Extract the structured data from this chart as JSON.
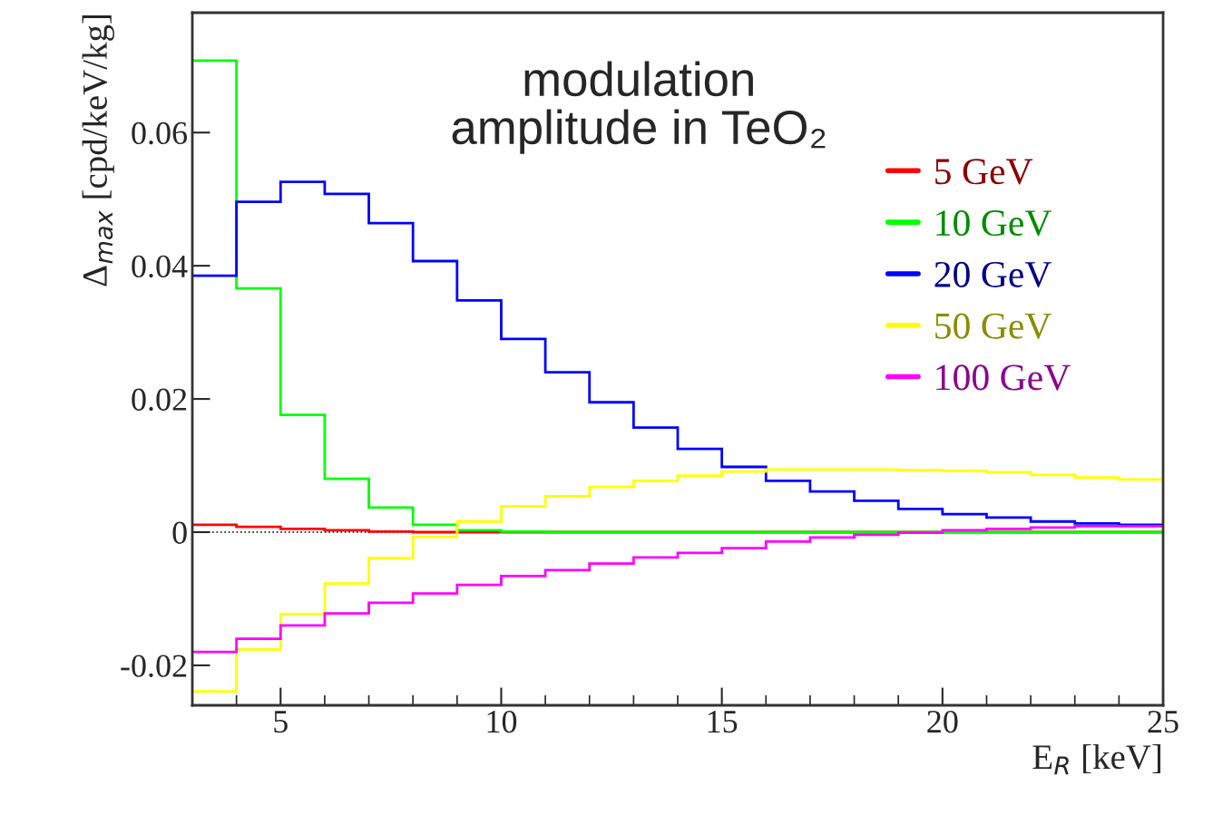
{
  "chart_data": {
    "type": "histogram",
    "title": "modulation\namplitude in TeO₂",
    "xlabel": "E$_{R}$ [keV]",
    "ylabel": "Δ$_{max}$ [cpd/keV/kg]",
    "bins": [
      3,
      4,
      5,
      6,
      7,
      8,
      9,
      10,
      11,
      12,
      13,
      14,
      15,
      16,
      17,
      18,
      19,
      20,
      21,
      22,
      23,
      24,
      25
    ],
    "series": [
      {
        "name": "5 GeV",
        "color": "#ff0000",
        "values": [
          0.0011,
          0.0008,
          0.0005,
          0.0003,
          0.0001,
          0,
          0,
          0,
          0,
          0,
          0,
          0,
          0,
          0,
          0,
          0,
          0,
          0,
          0,
          0,
          0,
          0
        ]
      },
      {
        "name": "10 GeV",
        "color": "#00ff00",
        "values": [
          0.0708,
          0.0366,
          0.0176,
          0.008,
          0.0037,
          0.0011,
          0.0003,
          0.0001,
          0,
          0,
          0,
          0,
          0,
          0,
          0,
          0,
          0,
          0,
          0,
          0,
          0,
          0
        ]
      },
      {
        "name": "20 GeV",
        "color": "#0000ff",
        "values": [
          0.0385,
          0.0496,
          0.0526,
          0.0508,
          0.0464,
          0.0407,
          0.0348,
          0.029,
          0.024,
          0.0195,
          0.0157,
          0.0125,
          0.0098,
          0.0077,
          0.0061,
          0.0047,
          0.0035,
          0.0027,
          0.0022,
          0.0016,
          0.0013,
          0.0011
        ]
      },
      {
        "name": "50 GeV",
        "color": "#ffff00",
        "values": [
          -0.0239,
          -0.0176,
          -0.0123,
          -0.0077,
          -0.0039,
          -0.0007,
          0.0016,
          0.0039,
          0.0054,
          0.0068,
          0.0077,
          0.0085,
          0.0091,
          0.0094,
          0.0094,
          0.0094,
          0.0093,
          0.0092,
          0.009,
          0.0086,
          0.0082,
          0.0079
        ]
      },
      {
        "name": "100 GeV",
        "color": "#ff00ff",
        "values": [
          -0.018,
          -0.016,
          -0.014,
          -0.0122,
          -0.0106,
          -0.0092,
          -0.0079,
          -0.0066,
          -0.0057,
          -0.0047,
          -0.0038,
          -0.0031,
          -0.0024,
          -0.0014,
          -0.0008,
          -0.0004,
          -0.0001,
          0.0003,
          0.0005,
          0.0007,
          0.0009,
          0.0009
        ]
      }
    ],
    "ref_lines": [
      {
        "axis": "y",
        "value": 0,
        "color": "#000000",
        "line_style": "dotted"
      }
    ],
    "xlim": [
      3,
      25
    ],
    "ylim": [
      -0.026,
      0.078
    ],
    "xticks": [
      5,
      10,
      15,
      20,
      25
    ],
    "yticks": [
      -0.02,
      0,
      0.02,
      0.04,
      0.06
    ],
    "grid": false,
    "legend": "top right"
  }
}
